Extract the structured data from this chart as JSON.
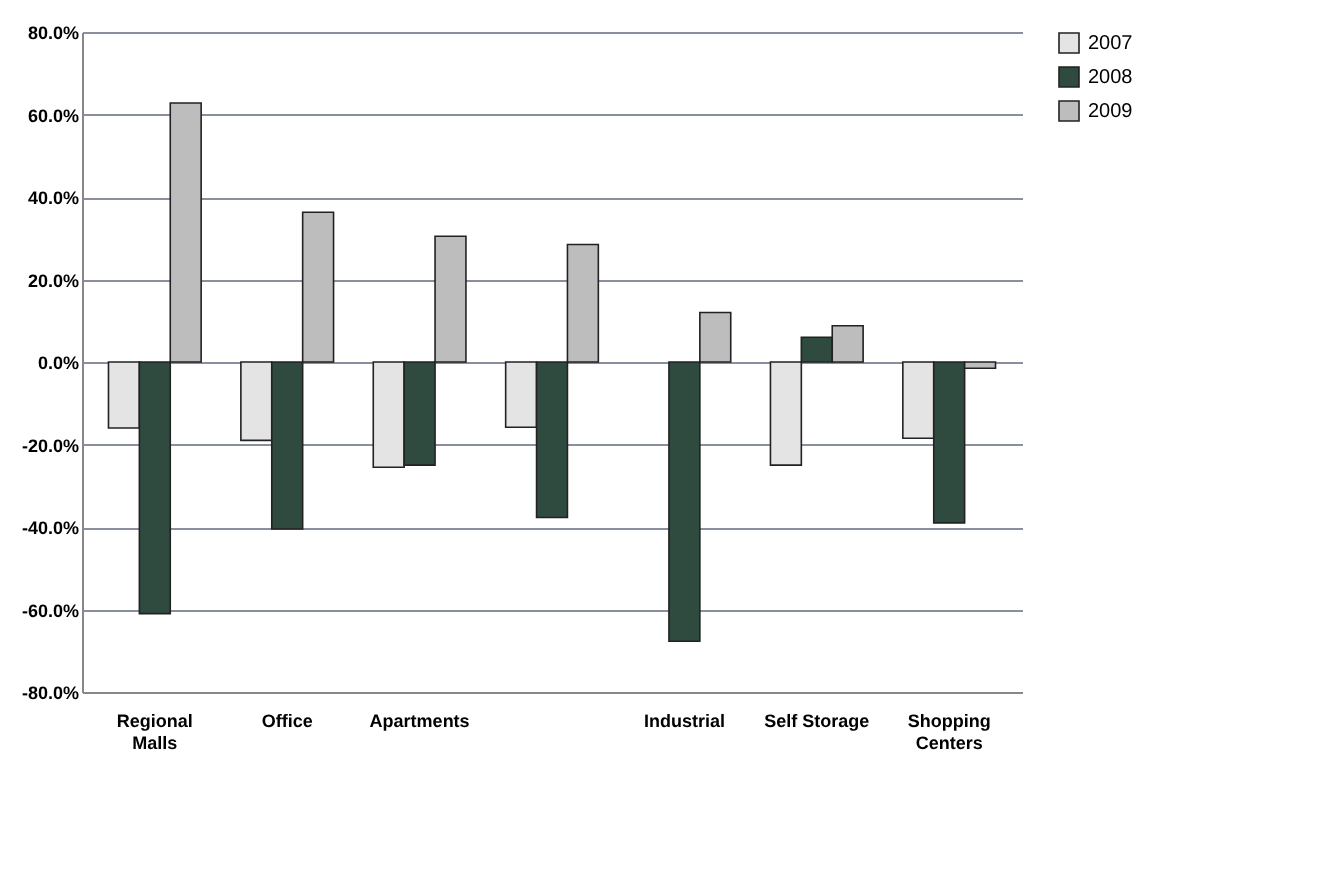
{
  "chart_data": {
    "type": "bar",
    "categories": [
      "Regional Malls",
      "Office",
      "Apartments",
      null,
      "Industrial",
      "Self Storage",
      "Shopping Centers"
    ],
    "series": [
      {
        "name": "2007",
        "color": "#e4e4e4",
        "values": [
          -16,
          -19,
          -25.5,
          -15.8,
          null,
          -25,
          -18.5
        ]
      },
      {
        "name": "2008",
        "color": "#2f4a3e",
        "values": [
          -61,
          -40.5,
          -25,
          -37.7,
          -67.7,
          6,
          -39
        ]
      },
      {
        "name": "2009",
        "color": "#bdbdbd",
        "values": [
          62.8,
          36.3,
          30.5,
          28.5,
          12,
          8.8,
          -1.5
        ]
      }
    ],
    "ylim": [
      -80,
      80
    ],
    "yticks": [
      {
        "value": -80,
        "label": "-80.0%"
      },
      {
        "value": -60,
        "label": "-60.0%"
      },
      {
        "value": -40,
        "label": "-40.0%"
      },
      {
        "value": -20,
        "label": "-20.0%"
      },
      {
        "value": 0,
        "label": "0.0%"
      },
      {
        "value": 20,
        "label": "20.0%"
      },
      {
        "value": 40,
        "label": "40.0%"
      },
      {
        "value": 60,
        "label": "60.0%"
      },
      {
        "value": 80,
        "label": "80.0%"
      }
    ],
    "grid": "y",
    "legend": "right"
  }
}
